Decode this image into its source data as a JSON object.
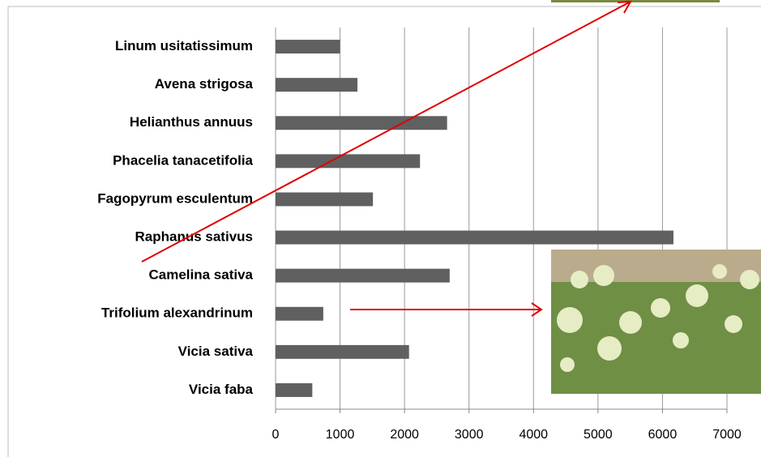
{
  "chart_data": {
    "type": "bar",
    "orientation": "horizontal",
    "categories": [
      "Linum usitatissimum",
      "Avena strigosa",
      "Helianthus annuus",
      "Phacelia tanacetifolia",
      "Fagopyrum esculentum",
      "Raphanus sativus",
      "Camelina sativa",
      "Trifolium alexandrinum",
      "Vicia sativa",
      "Vicia faba"
    ],
    "values": [
      1000,
      1270,
      2660,
      2240,
      1510,
      6170,
      2700,
      740,
      2070,
      570
    ],
    "color": "#606060",
    "xlim": [
      0,
      7000
    ],
    "xticks": [
      0,
      1000,
      2000,
      3000,
      4000,
      5000,
      6000,
      7000
    ],
    "grid": true
  }
}
